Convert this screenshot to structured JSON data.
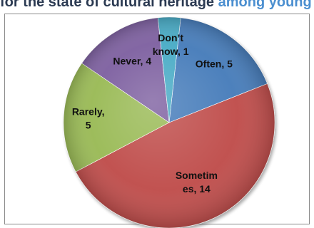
{
  "header": {
    "title_part1": "for the state of cultural heritage",
    "title_part2": "among young people"
  },
  "chart_data": {
    "type": "pie",
    "categories": [
      "Often",
      "Sometimes",
      "Rarely",
      "Never",
      "Don't know"
    ],
    "values": [
      5,
      14,
      5,
      4,
      1
    ],
    "labels": [
      [
        "Often, 5"
      ],
      [
        "Sometim",
        "es, 14"
      ],
      [
        "Rarely,",
        "5"
      ],
      [
        "Never, 4"
      ],
      [
        "Don’t",
        "know, 1"
      ]
    ],
    "colors": [
      "#4a7ebb",
      "#c0504d",
      "#9bbb59",
      "#8064a2",
      "#4bacc6"
    ],
    "start": "top, clockwise",
    "legend": "none"
  }
}
